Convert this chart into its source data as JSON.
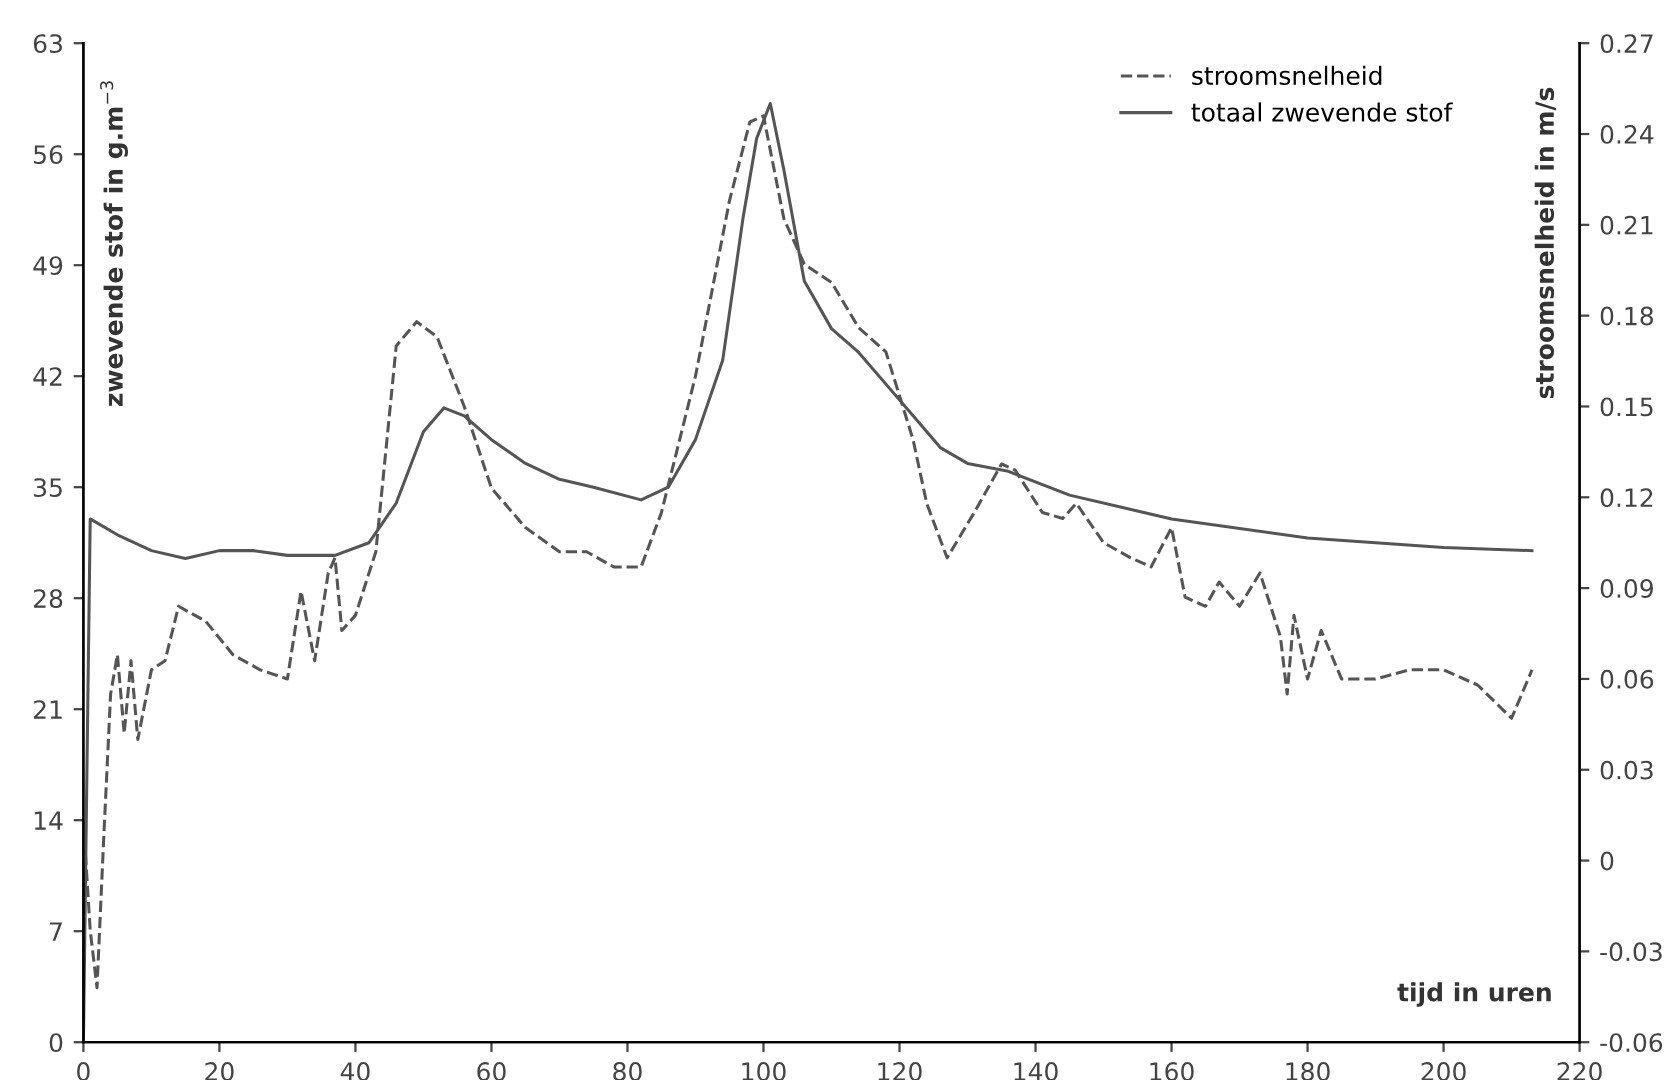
{
  "chart_data": {
    "type": "line",
    "xlabel": "tijd in uren",
    "ylabel": "zwevende stof in g.m$^{−3}$",
    "y2label": "stroomsnelheid in m/s",
    "xlim": [
      0,
      220
    ],
    "xticks": [
      0,
      20,
      40,
      60,
      80,
      100,
      120,
      140,
      160,
      180,
      200,
      220
    ],
    "ylim": [
      0,
      63
    ],
    "yticks": [
      0,
      7,
      14,
      21,
      28,
      35,
      42,
      49,
      56,
      63
    ],
    "y2lim": [
      -0.06,
      0.27
    ],
    "y2ticks": [
      {
        "value": -0.06,
        "label": "-0.06"
      },
      {
        "value": -0.03,
        "label": "-0.03"
      },
      0,
      0.03,
      0.06,
      0.09,
      0.12,
      0.15,
      0.18,
      0.21,
      0.24,
      0.27
    ],
    "grid": false,
    "legend": "top right",
    "marker": "none",
    "series": [
      {
        "name": "stroomsnelheid",
        "color": "#555555",
        "axis": "y2",
        "line_style": "dashed",
        "x": [
          0,
          1,
          2,
          3,
          4,
          5,
          6,
          7,
          8,
          10,
          12,
          14,
          18,
          22,
          26,
          30,
          32,
          34,
          36,
          37,
          38,
          40,
          43,
          46,
          49,
          52,
          56,
          60,
          65,
          70,
          74,
          78,
          82,
          85,
          90,
          95,
          98,
          100,
          103,
          106,
          110,
          114,
          118,
          122,
          124,
          127,
          131,
          135,
          137,
          141,
          144,
          146,
          150,
          154,
          157,
          160,
          162,
          165,
          167,
          170,
          173,
          176,
          177,
          178,
          180,
          182,
          185,
          190,
          195,
          200,
          205,
          210,
          213
        ],
        "values": [
          0.013,
          -0.023,
          -0.042,
          0.008,
          0.055,
          0.068,
          0.042,
          0.066,
          0.04,
          0.063,
          0.066,
          0.084,
          0.079,
          0.068,
          0.063,
          0.06,
          0.089,
          0.066,
          0.095,
          0.1,
          0.076,
          0.081,
          0.102,
          0.17,
          0.178,
          0.173,
          0.15,
          0.123,
          0.11,
          0.102,
          0.102,
          0.097,
          0.097,
          0.115,
          0.16,
          0.218,
          0.244,
          0.246,
          0.212,
          0.197,
          0.191,
          0.176,
          0.168,
          0.139,
          0.118,
          0.1,
          0.115,
          0.131,
          0.129,
          0.115,
          0.113,
          0.118,
          0.105,
          0.1,
          0.097,
          0.11,
          0.087,
          0.084,
          0.092,
          0.084,
          0.095,
          0.074,
          0.055,
          0.081,
          0.06,
          0.076,
          0.06,
          0.06,
          0.063,
          0.063,
          0.058,
          0.047,
          0.063
        ]
      },
      {
        "name": "totaal zwevende stof",
        "color": "#555555",
        "line_style": "solid",
        "x": [
          0,
          1,
          5,
          10,
          15,
          20,
          25,
          30,
          37,
          42,
          46,
          50,
          53,
          56,
          60,
          65,
          70,
          75,
          82,
          86,
          90,
          94,
          97,
          99,
          101,
          103,
          106,
          110,
          114,
          118,
          122,
          126,
          130,
          136,
          145,
          160,
          180,
          200,
          213
        ],
        "values": [
          0,
          33,
          32,
          31,
          30.5,
          31,
          31,
          30.7,
          30.7,
          31.5,
          34,
          38.5,
          40,
          39.5,
          38,
          36.5,
          35.5,
          35,
          34.2,
          35,
          38,
          43,
          52,
          57,
          59.2,
          55,
          48,
          45,
          43.5,
          41.5,
          39.5,
          37.5,
          36.5,
          36,
          34.5,
          33,
          31.8,
          31.2,
          31
        ]
      }
    ]
  }
}
